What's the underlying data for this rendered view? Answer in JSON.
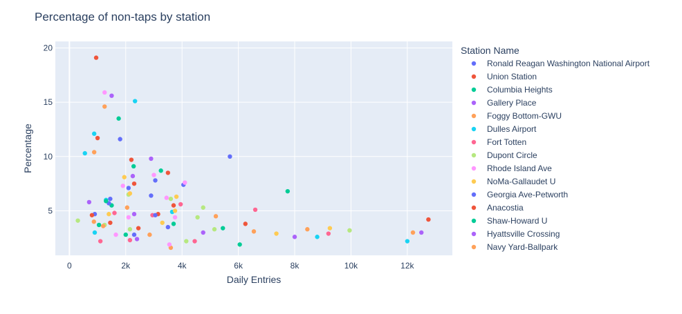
{
  "chart_data": {
    "type": "scatter",
    "title": "Percentage of non-taps by station",
    "xlabel": "Daily Entries",
    "ylabel": "Percentage",
    "xlim": [
      -500,
      13600
    ],
    "ylim": [
      0.9,
      20.6
    ],
    "xticks": [
      0,
      2000,
      4000,
      6000,
      8000,
      10000,
      12000
    ],
    "xtick_labels": [
      "0",
      "2k",
      "4k",
      "6k",
      "8k",
      "10k",
      "12k"
    ],
    "yticks": [
      5,
      10,
      15,
      20
    ],
    "ytick_labels": [
      "5",
      "10",
      "15",
      "20"
    ],
    "grid": true,
    "legend_title": "Station Name",
    "legend_position": "right",
    "series": [
      {
        "name": "Ronald Reagan Washington National Airport",
        "color": "#636efa",
        "points": [
          [
            900,
            4.7
          ],
          [
            1800,
            11.6
          ],
          [
            2100,
            7.1
          ],
          [
            2300,
            2.8
          ],
          [
            3050,
            7.8
          ],
          [
            3500,
            3.5
          ],
          [
            4050,
            7.4
          ],
          [
            5700,
            10.0
          ]
        ]
      },
      {
        "name": "Union Station",
        "color": "#ef553b",
        "points": [
          [
            950,
            19.1
          ],
          [
            1000,
            11.7
          ],
          [
            1450,
            3.9
          ],
          [
            2200,
            9.7
          ],
          [
            2300,
            7.5
          ],
          [
            2450,
            3.4
          ],
          [
            3150,
            4.7
          ],
          [
            3500,
            8.5
          ],
          [
            3700,
            5.5
          ],
          [
            6250,
            3.8
          ],
          [
            12750,
            4.2
          ]
        ]
      },
      {
        "name": "Columbia Heights",
        "color": "#00cc96",
        "points": [
          [
            1050,
            3.7
          ],
          [
            1500,
            5.5
          ],
          [
            1750,
            13.5
          ],
          [
            2000,
            2.8
          ],
          [
            2280,
            9.1
          ],
          [
            3250,
            8.7
          ],
          [
            3700,
            3.8
          ],
          [
            5450,
            3.4
          ],
          [
            6050,
            1.9
          ],
          [
            7750,
            6.8
          ]
        ]
      },
      {
        "name": "Gallery Place",
        "color": "#ab63fa",
        "points": [
          [
            700,
            5.8
          ],
          [
            1500,
            15.6
          ],
          [
            2250,
            8.2
          ],
          [
            2300,
            4.7
          ],
          [
            2900,
            9.8
          ],
          [
            8000,
            2.6
          ]
        ]
      },
      {
        "name": "Foggy Bottom-GWU",
        "color": "#ffa15a",
        "points": [
          [
            880,
            10.4
          ],
          [
            870,
            4.0
          ],
          [
            1250,
            14.6
          ],
          [
            2050,
            5.3
          ],
          [
            2850,
            2.8
          ],
          [
            3600,
            1.6
          ],
          [
            5200,
            4.5
          ],
          [
            6550,
            3.1
          ],
          [
            8450,
            3.3
          ],
          [
            12200,
            3.0
          ]
        ]
      },
      {
        "name": "Dulles Airport",
        "color": "#19d3f3",
        "points": [
          [
            550,
            10.3
          ],
          [
            880,
            12.1
          ],
          [
            900,
            3.0
          ],
          [
            1300,
            6.0
          ],
          [
            2330,
            15.1
          ],
          [
            3650,
            4.9
          ],
          [
            8800,
            2.6
          ],
          [
            12000,
            2.2
          ]
        ]
      },
      {
        "name": "Fort Totten",
        "color": "#ff6692",
        "points": [
          [
            1100,
            2.2
          ],
          [
            1600,
            4.8
          ],
          [
            2150,
            2.3
          ],
          [
            2950,
            4.6
          ],
          [
            3950,
            5.6
          ],
          [
            4450,
            2.2
          ],
          [
            6600,
            5.1
          ],
          [
            9200,
            2.9
          ]
        ]
      },
      {
        "name": "Dupont Circle",
        "color": "#b6e880",
        "points": [
          [
            300,
            4.1
          ],
          [
            1250,
            3.7
          ],
          [
            2100,
            6.5
          ],
          [
            2150,
            3.3
          ],
          [
            3600,
            6.1
          ],
          [
            4150,
            2.2
          ],
          [
            4550,
            4.4
          ],
          [
            4750,
            5.3
          ],
          [
            5150,
            3.3
          ],
          [
            9950,
            3.2
          ]
        ]
      },
      {
        "name": "Rhode Island Ave",
        "color": "#ff97ff",
        "points": [
          [
            1250,
            15.9
          ],
          [
            1650,
            2.8
          ],
          [
            1900,
            7.3
          ],
          [
            2100,
            4.4
          ],
          [
            3000,
            8.3
          ],
          [
            3450,
            6.2
          ],
          [
            3550,
            1.9
          ],
          [
            3750,
            4.4
          ],
          [
            4100,
            7.6
          ]
        ]
      },
      {
        "name": "NoMa-Gallaudet U",
        "color": "#fecb52",
        "points": [
          [
            1400,
            4.7
          ],
          [
            1950,
            8.1
          ],
          [
            2150,
            6.6
          ],
          [
            3300,
            3.9
          ],
          [
            3750,
            5.0
          ],
          [
            3800,
            6.3
          ],
          [
            7350,
            2.9
          ],
          [
            9250,
            3.4
          ]
        ]
      },
      {
        "name": "Georgia Ave-Petworth",
        "color": "#636efa",
        "points": [
          [
            1450,
            6.1
          ],
          [
            1400,
            5.7
          ],
          [
            2900,
            6.4
          ],
          [
            3050,
            4.6
          ]
        ]
      },
      {
        "name": "Anacostia",
        "color": "#ef553b",
        "points": [
          [
            800,
            4.6
          ]
        ]
      },
      {
        "name": "Shaw-Howard U",
        "color": "#00cc96",
        "points": [
          [
            1300,
            5.9
          ]
        ]
      },
      {
        "name": "Hyattsville Crossing",
        "color": "#ab63fa",
        "points": [
          [
            2400,
            2.4
          ],
          [
            4750,
            3.0
          ],
          [
            12500,
            3.0
          ]
        ]
      },
      {
        "name": "Navy Yard-Ballpark",
        "color": "#ffa15a",
        "points": [
          [
            1200,
            3.6
          ]
        ]
      }
    ]
  }
}
